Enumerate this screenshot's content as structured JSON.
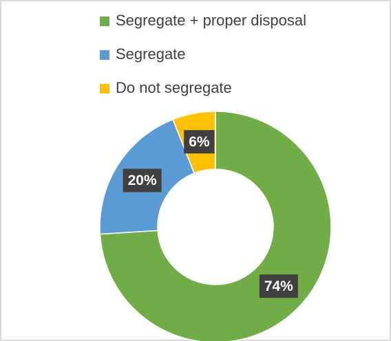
{
  "chart_data": {
    "type": "donut",
    "categories": [
      "Segregate + proper disposal",
      "Segregate",
      "Do not segregate"
    ],
    "values": [
      74,
      20,
      6
    ],
    "value_labels": [
      "74%",
      "20%",
      "6%"
    ],
    "colors": [
      "#70ad47",
      "#5b9bd5",
      "#ffc000"
    ],
    "legend": "top"
  }
}
